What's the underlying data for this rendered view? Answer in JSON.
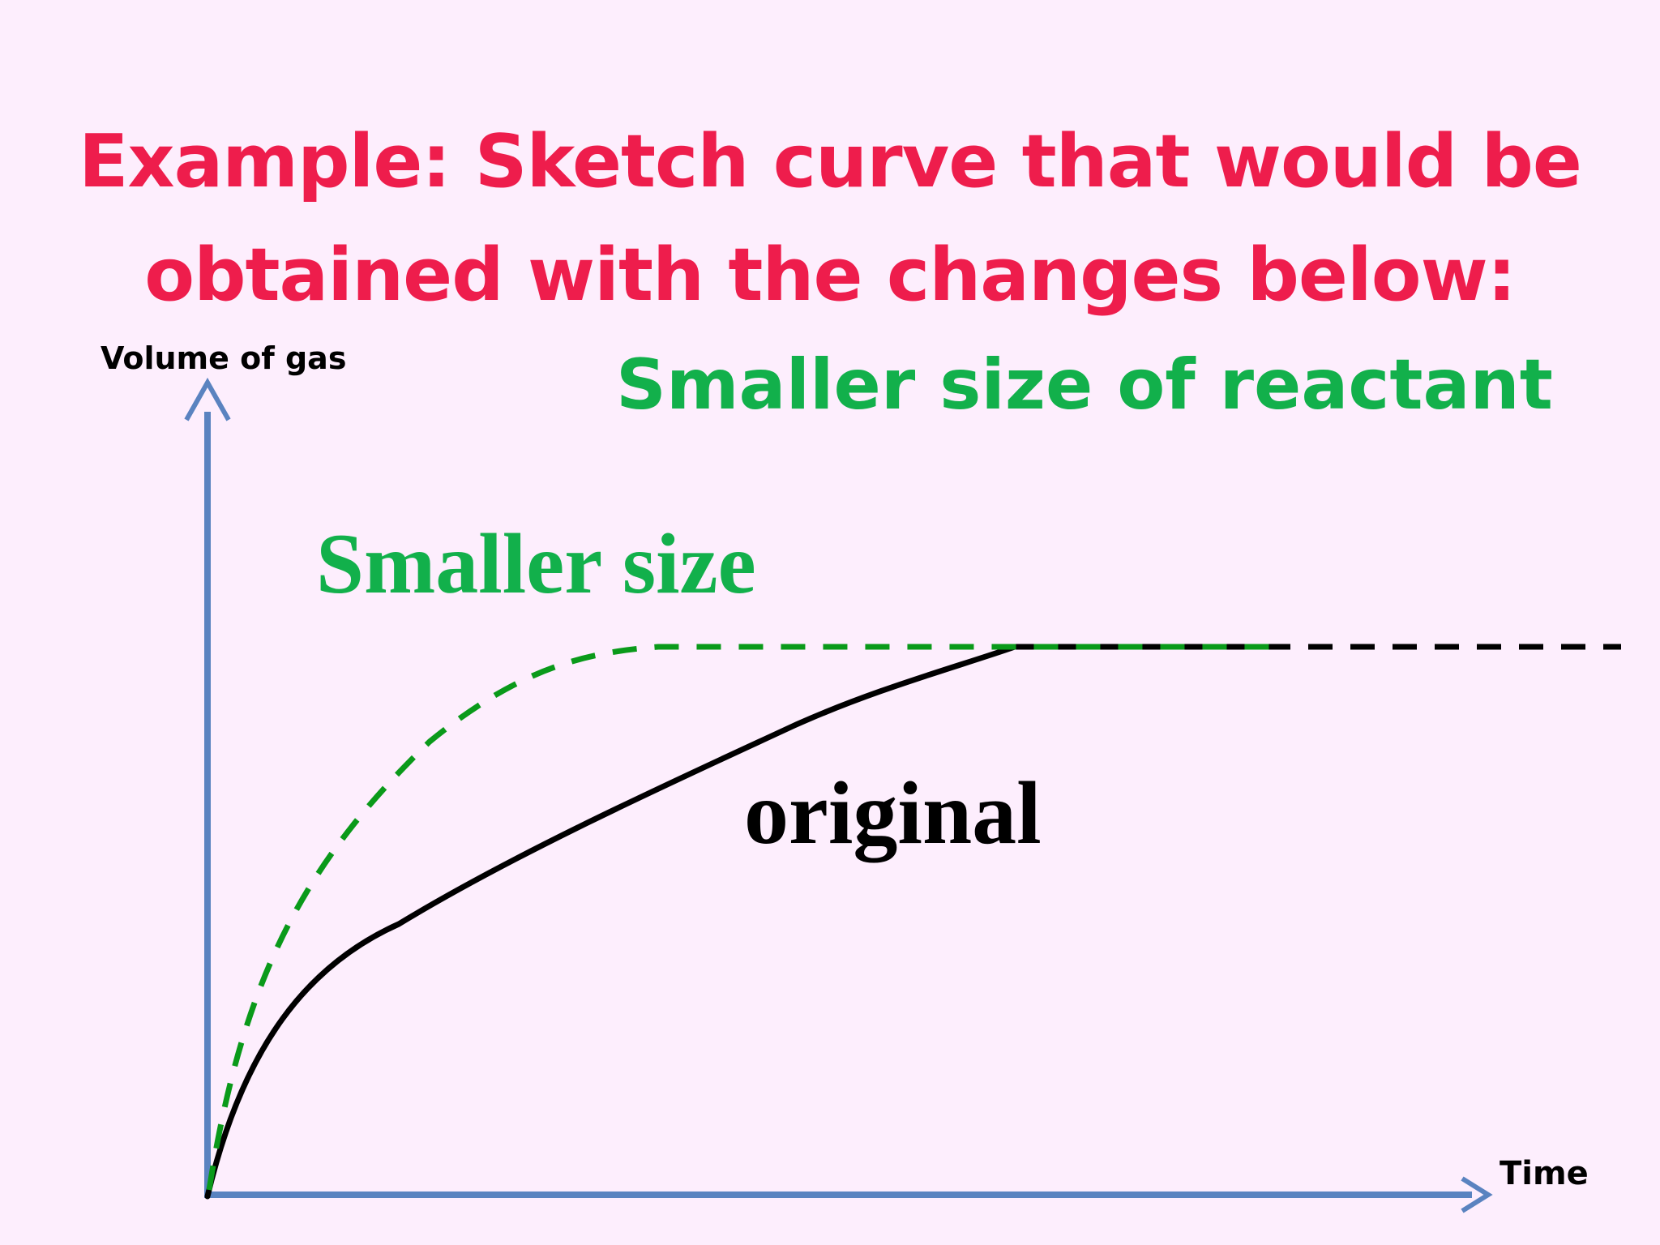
{
  "slide": {
    "title_line1": "Example: Sketch curve that would be",
    "title_line2": "obtained with the changes below:",
    "subtitle": "Smaller size of reactant"
  },
  "graph": {
    "y_axis_label": "Volume of gas",
    "x_axis_label": "Time",
    "curves": [
      {
        "label": "Smaller size",
        "style": "dashed",
        "color": "#0a9a1a"
      },
      {
        "label": "original",
        "style": "solid",
        "color": "#000000"
      }
    ],
    "axis_color": "#5a83c0"
  }
}
